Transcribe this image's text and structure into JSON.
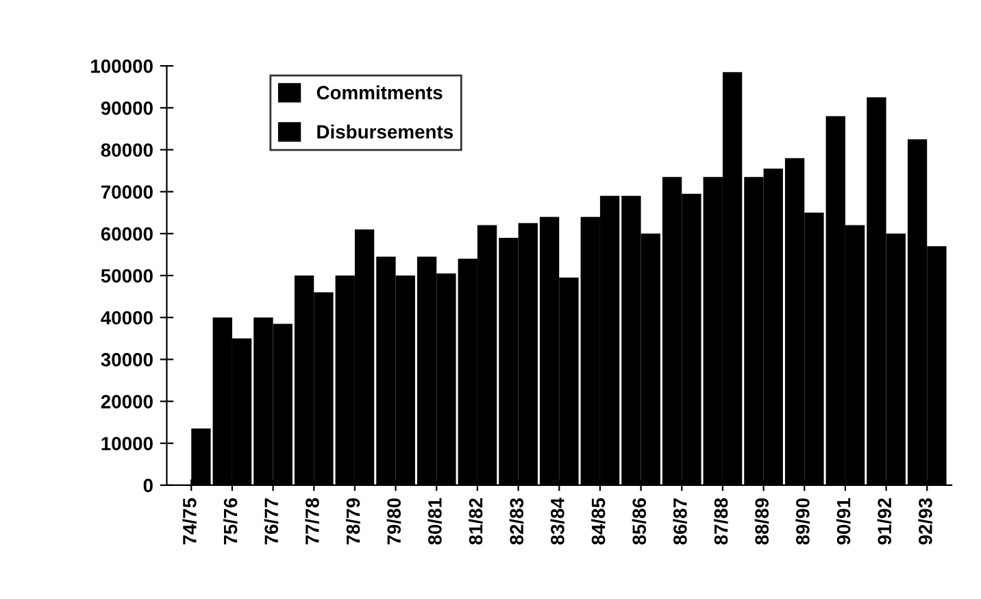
{
  "chart_data": {
    "type": "bar",
    "categories": [
      "74/75",
      "75/76",
      "76/77",
      "77/78",
      "78/79",
      "79/80",
      "80/81",
      "81/82",
      "82/83",
      "83/84",
      "84/85",
      "85/86",
      "86/87",
      "87/88",
      "88/89",
      "89/90",
      "90/91",
      "91/92",
      "92/93"
    ],
    "series": [
      {
        "name": "Commitments",
        "color": "#000000",
        "values": [
          null,
          40000,
          40000,
          50000,
          50000,
          54500,
          54500,
          54000,
          59000,
          64000,
          64000,
          69000,
          73500,
          73500,
          73500,
          78000,
          88000,
          92500,
          82500
        ]
      },
      {
        "name": "Disbursements",
        "color": "#000000",
        "values": [
          13500,
          35000,
          38500,
          46000,
          61000,
          50000,
          50500,
          62000,
          62500,
          49500,
          69000,
          60000,
          69500,
          98500,
          75500,
          65000,
          62000,
          60000,
          57000
        ]
      }
    ],
    "ylim": [
      0,
      100000
    ],
    "yticks": [
      0,
      10000,
      20000,
      30000,
      40000,
      50000,
      60000,
      70000,
      80000,
      90000,
      100000
    ],
    "grid": false,
    "legend": "top"
  }
}
